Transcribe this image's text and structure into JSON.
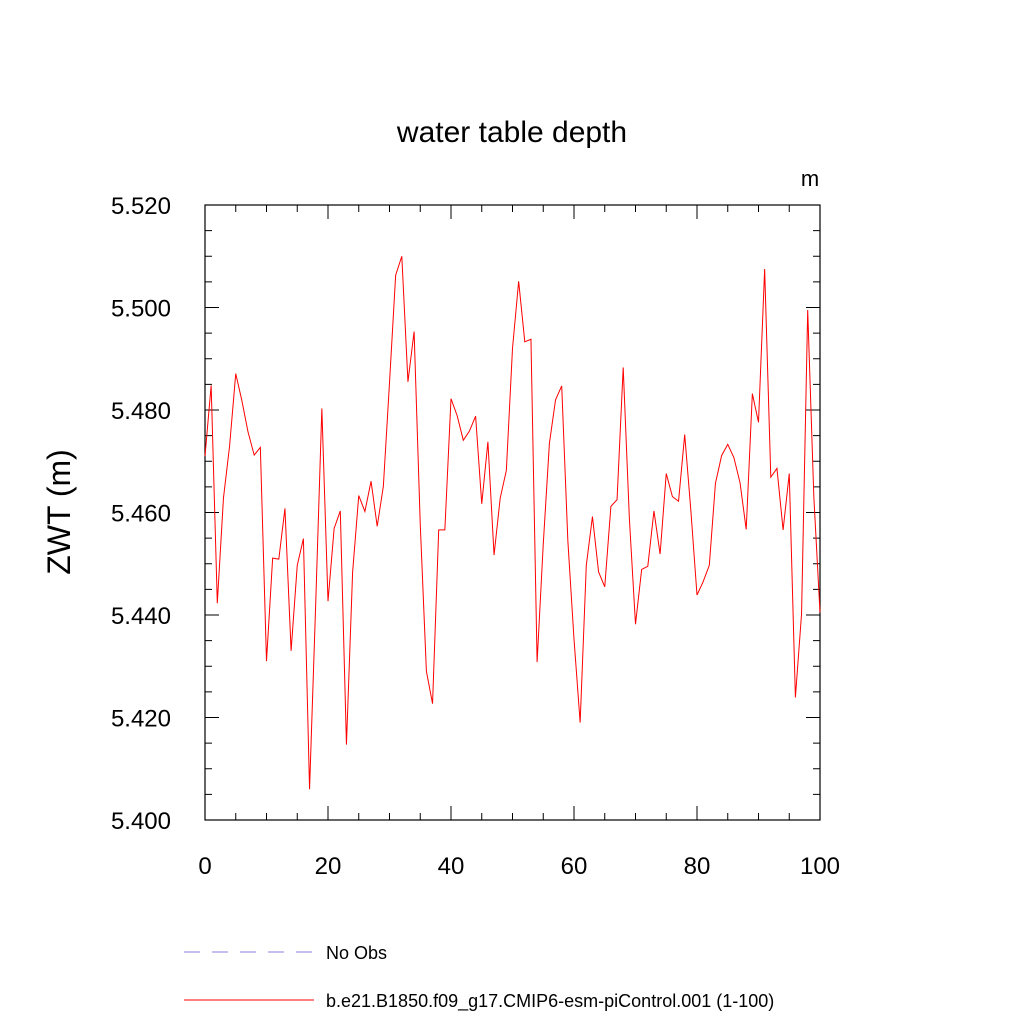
{
  "chart_data": {
    "type": "line",
    "title": "water table depth",
    "units_label": "m",
    "ylabel": "ZWT  (m)",
    "xlabel": "",
    "xlim": [
      0,
      100
    ],
    "ylim": [
      5.4,
      5.52
    ],
    "x_ticks": [
      0,
      20,
      40,
      60,
      80,
      100
    ],
    "x_tick_labels": [
      "0",
      "20",
      "40",
      "60",
      "80",
      "100"
    ],
    "y_ticks": [
      5.4,
      5.42,
      5.44,
      5.46,
      5.48,
      5.5,
      5.52
    ],
    "y_tick_labels": [
      "5.400",
      "5.420",
      "5.440",
      "5.460",
      "5.480",
      "5.500",
      "5.520"
    ],
    "grid": false,
    "legend_position": "bottom",
    "series": [
      {
        "name": "b.e21.B1850.f09_g17.CMIP6-esm-piControl.001 (1-100)",
        "color": "#ff0000",
        "style": "solid",
        "x": [
          0,
          1,
          2,
          3,
          4,
          5,
          6,
          7,
          8,
          9,
          10,
          11,
          12,
          13,
          14,
          15,
          16,
          17,
          18,
          19,
          20,
          21,
          22,
          23,
          24,
          25,
          26,
          27,
          28,
          29,
          30,
          31,
          32,
          33,
          34,
          35,
          36,
          37,
          38,
          39,
          40,
          41,
          42,
          43,
          44,
          45,
          46,
          47,
          48,
          49,
          50,
          51,
          52,
          53,
          54,
          55,
          56,
          57,
          58,
          59,
          60,
          61,
          62,
          63,
          64,
          65,
          66,
          67,
          68,
          69,
          70,
          71,
          72,
          73,
          74,
          75,
          76,
          77,
          78,
          79,
          80,
          81,
          82,
          83,
          84,
          85,
          86,
          87,
          88,
          89,
          90,
          91,
          92,
          93,
          94,
          95,
          96,
          97,
          98,
          99,
          100
        ],
        "y": [
          5.471,
          5.4848,
          5.4423,
          5.4628,
          5.473,
          5.4871,
          5.4818,
          5.4757,
          5.4712,
          5.4727,
          5.431,
          5.4511,
          5.4509,
          5.4608,
          5.433,
          5.4497,
          5.4549,
          5.406,
          5.4422,
          5.4803,
          5.4427,
          5.4569,
          5.4603,
          5.4147,
          5.4483,
          5.4633,
          5.4602,
          5.4661,
          5.4573,
          5.4651,
          5.4853,
          5.5063,
          5.51,
          5.4855,
          5.4953,
          5.4577,
          5.429,
          5.4227,
          5.4566,
          5.4566,
          5.4822,
          5.4789,
          5.4741,
          5.4759,
          5.4788,
          5.4617,
          5.4738,
          5.4517,
          5.4628,
          5.4682,
          5.492,
          5.5051,
          5.4933,
          5.4938,
          5.4308,
          5.4538,
          5.4735,
          5.482,
          5.4847,
          5.4545,
          5.4353,
          5.419,
          5.4497,
          5.4592,
          5.4484,
          5.4455,
          5.4612,
          5.4625,
          5.4883,
          5.4589,
          5.4382,
          5.4489,
          5.4495,
          5.4603,
          5.4519,
          5.4676,
          5.4631,
          5.4622,
          5.4752,
          5.4604,
          5.4439,
          5.4465,
          5.4497,
          5.4657,
          5.4711,
          5.4733,
          5.4707,
          5.4658,
          5.4567,
          5.4832,
          5.4776,
          5.5075,
          5.4669,
          5.4686,
          5.4566,
          5.4676,
          5.4239,
          5.4402,
          5.4995,
          5.463,
          5.4405
        ]
      },
      {
        "name": "No Obs",
        "color": "#8a7fd8",
        "style": "dashed",
        "x": [],
        "y": []
      }
    ]
  }
}
